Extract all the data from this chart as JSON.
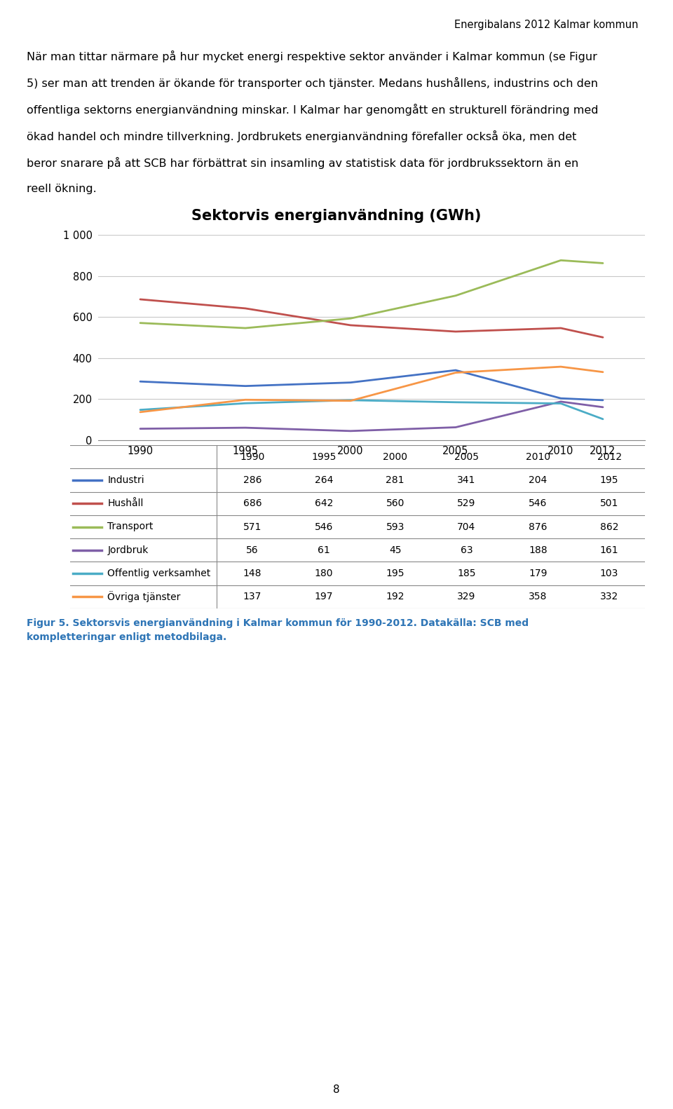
{
  "title": "Sektorvis energianvändning (GWh)",
  "header_text": "Energibalans 2012 Kalmar kommun",
  "body_text_lines": [
    "När man tittar närmare på hur mycket energi respektive sektor använder i Kalmar kommun (se Figur",
    "5) ser man att trenden är ökande för transporter och tjänster. Medans hushållens, industrins och den",
    "offentliga sektorns energianvändning minskar. I Kalmar har genomgått en strukturell förändring med",
    "ökad handel och mindre tillverkning. Jordbrukets energianvändning förefaller också öka, men det",
    "beror snarare på att SCB har förbättrat sin insamling av statistisk data för jordbrukssektorn än en",
    "reell ökning."
  ],
  "caption_text": "Figur 5. Sektorsvis energianvändning i Kalmar kommun för 1990-2012. Datakälla: SCB med\nkompletteringar enligt metodbilaga.",
  "years": [
    1990,
    1995,
    2000,
    2005,
    2010,
    2012
  ],
  "series": [
    {
      "name": "Industri",
      "values": [
        286,
        264,
        281,
        341,
        204,
        195
      ],
      "color": "#4472C4"
    },
    {
      "name": "Hushåll",
      "values": [
        686,
        642,
        560,
        529,
        546,
        501
      ],
      "color": "#C0504D"
    },
    {
      "name": "Transport",
      "values": [
        571,
        546,
        593,
        704,
        876,
        862
      ],
      "color": "#9BBB59"
    },
    {
      "name": "Jordbruk",
      "values": [
        56,
        61,
        45,
        63,
        188,
        161
      ],
      "color": "#7F5FA7"
    },
    {
      "name": "Offentlig verksamhet",
      "values": [
        148,
        180,
        195,
        185,
        179,
        103
      ],
      "color": "#4BACC6"
    },
    {
      "name": "Övriga tjänster",
      "values": [
        137,
        197,
        192,
        329,
        358,
        332
      ],
      "color": "#F79646"
    }
  ],
  "ylim": [
    0,
    1000
  ],
  "yticks": [
    0,
    200,
    400,
    600,
    800,
    1000
  ],
  "ytick_labels": [
    "0",
    "200",
    "400",
    "600",
    "800",
    "1 000"
  ],
  "bg_color": "#FFFFFF",
  "plot_bg_color": "#FFFFFF",
  "grid_color": "#C8C8C8",
  "line_width": 2.0,
  "page_number": "8"
}
